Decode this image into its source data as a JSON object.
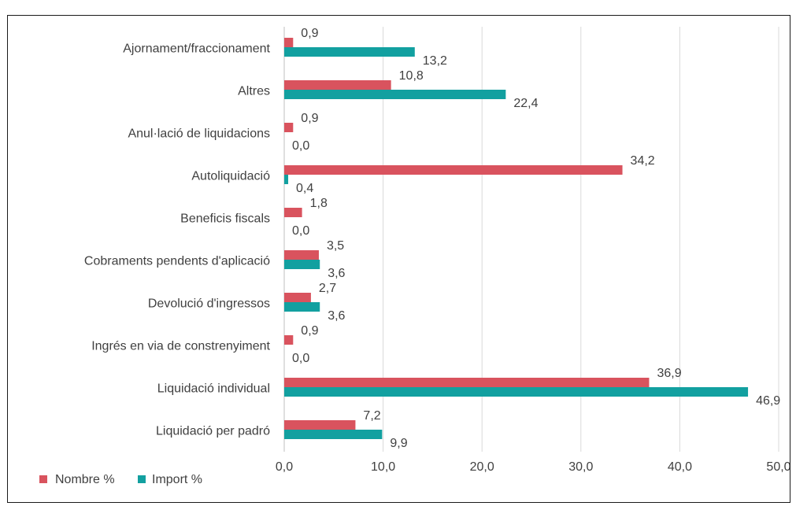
{
  "header": {
    "clipped_title": ""
  },
  "colors": {
    "nombre": "#d9535e",
    "import": "#12a0a0",
    "grid": "#d9d9d9",
    "text": "#404040"
  },
  "chart_data": {
    "type": "bar",
    "orientation": "horizontal",
    "categories": [
      "Ajornament/fraccionament",
      "Altres",
      "Anul·lació de liquidacions",
      "Autoliquidació",
      "Beneficis fiscals",
      "Cobraments pendents d'aplicació",
      "Devolució d'ingressos",
      "Ingrés en via de constrenyiment",
      "Liquidació individual",
      "Liquidació per padró"
    ],
    "series": [
      {
        "name": "Nombre %",
        "values": [
          0.9,
          10.8,
          0.9,
          34.2,
          1.8,
          3.5,
          2.7,
          0.9,
          36.9,
          7.2
        ],
        "labels": [
          "0,9",
          "10,8",
          "0,9",
          "34,2",
          "1,8",
          "3,5",
          "2,7",
          "0,9",
          "36,9",
          "7,2"
        ]
      },
      {
        "name": "Import %",
        "values": [
          13.2,
          22.4,
          0.0,
          0.4,
          0.0,
          3.6,
          3.6,
          0.0,
          46.9,
          9.9
        ],
        "labels": [
          "13,2",
          "22,4",
          "0,0",
          "0,4",
          "0,0",
          "3,6",
          "3,6",
          "0,0",
          "46,9",
          "9,9"
        ]
      }
    ],
    "xlim": [
      0,
      50
    ],
    "xticks": [
      "0,0",
      "10,0",
      "20,0",
      "30,0",
      "40,0",
      "50,0"
    ],
    "grid": true,
    "legend_position": "bottom-left"
  }
}
